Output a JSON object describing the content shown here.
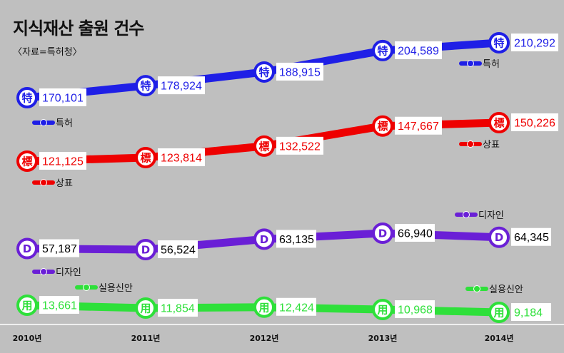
{
  "title": "지식재산 출원 건수",
  "source": "〈자료=특허청〉",
  "chart_data": {
    "type": "line",
    "title": "지식재산 출원 건수",
    "x": [
      "2010년",
      "2011년",
      "2012년",
      "2013년",
      "2014년"
    ],
    "grid": false,
    "legend_placement": "beside each line",
    "series": [
      {
        "name": "특허",
        "color": "#1f1fe6",
        "marker": "特",
        "values": [
          170101,
          178924,
          188915,
          204589,
          210292
        ],
        "labels": [
          "170,101",
          "178,924",
          "188,915",
          "204,589",
          "210,292"
        ]
      },
      {
        "name": "상표",
        "color": "#ee0000",
        "marker": "標",
        "values": [
          121125,
          123814,
          132522,
          147667,
          150226
        ],
        "labels": [
          "121,125",
          "123,814",
          "132,522",
          "147,667",
          "150,226"
        ]
      },
      {
        "name": "디자인",
        "color": "#6a1fd6",
        "marker": "D",
        "values": [
          57187,
          56524,
          63135,
          66940,
          64345
        ],
        "labels": [
          "57,187",
          "56,524",
          "63,135",
          "66,940",
          "64,345"
        ]
      },
      {
        "name": "실용신안",
        "color": "#2ee03a",
        "marker": "用",
        "values": [
          13661,
          11854,
          12424,
          10968,
          9184
        ],
        "labels": [
          "13,661",
          "11,854",
          "12,424",
          "10,968",
          "9,184"
        ]
      }
    ]
  }
}
